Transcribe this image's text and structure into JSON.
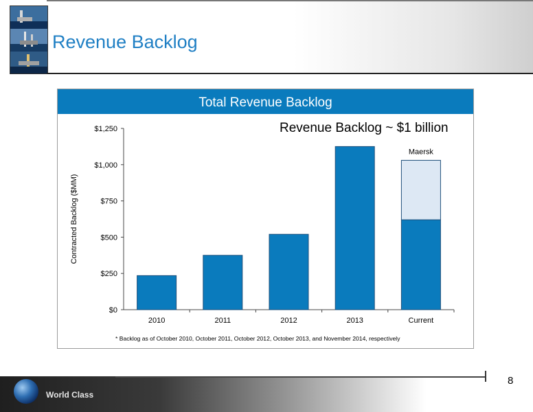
{
  "slide": {
    "title": "Revenue Backlog",
    "page_number": "8",
    "footer_label": "World Class"
  },
  "panel": {
    "title": "Total Revenue Backlog",
    "header_color": "#0a7bbd"
  },
  "chart_data": {
    "type": "bar",
    "title": "",
    "annotation": "Revenue Backlog ~ $1 billion",
    "xlabel": "",
    "ylabel": "Contracted Backlog ($MM)",
    "ylim": [
      0,
      1250
    ],
    "yticks": [
      0,
      250,
      500,
      750,
      1000,
      1250
    ],
    "ytick_labels": [
      "$0",
      "$250",
      "$500",
      "$750",
      "$1,000",
      "$1,250"
    ],
    "categories": [
      "2010",
      "2011",
      "2012",
      "2013",
      "Current"
    ],
    "series": [
      {
        "values": [
          235,
          375,
          520,
          1125,
          620
        ],
        "color": "#0a7bbd"
      },
      {
        "name": "Maersk",
        "values": [
          0,
          0,
          0,
          0,
          410
        ],
        "color": "#dde8f4"
      }
    ],
    "grid": false,
    "legend": "none",
    "footnote": "* Backlog as of October 2010, October 2011, October 2012, October 2013, and November 2014, respectively"
  }
}
